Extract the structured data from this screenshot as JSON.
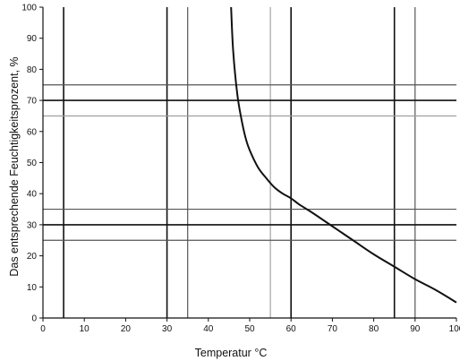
{
  "chart_data": {
    "type": "line",
    "title": "",
    "xlabel": "Temperatur °C",
    "ylabel": "Das entsprechende Feuchtigkeitsprozent, %",
    "xlim": [
      0,
      100
    ],
    "ylim": [
      0,
      100
    ],
    "x_ticks": [
      0,
      10,
      20,
      30,
      40,
      50,
      60,
      70,
      80,
      90,
      100
    ],
    "y_ticks": [
      0,
      10,
      20,
      30,
      40,
      50,
      60,
      70,
      80,
      90,
      100
    ],
    "x_tick_labels": [
      "0",
      "10",
      "20",
      "30",
      "40",
      "50",
      "60",
      "70",
      "80",
      "90",
      "100"
    ],
    "y_tick_labels": [
      "0",
      "10",
      "20",
      "30",
      "40",
      "50",
      "60",
      "70",
      "80",
      "90",
      "100"
    ],
    "grid": false,
    "series": [
      {
        "x": [
          45.5,
          46,
          47,
          48,
          49,
          50,
          52,
          54,
          56,
          58,
          60,
          62,
          65,
          70,
          75,
          80,
          85,
          90,
          95,
          100
        ],
        "y": [
          100,
          86,
          72,
          64,
          58,
          54,
          48.5,
          45,
          42,
          40,
          38.5,
          36.5,
          34,
          29.5,
          25,
          20.5,
          16.5,
          12.5,
          9,
          5
        ]
      }
    ],
    "reference_lines": {
      "vertical": [
        {
          "x": 5,
          "style": "dark"
        },
        {
          "x": 30,
          "style": "dark"
        },
        {
          "x": 35,
          "style": "medium"
        },
        {
          "x": 55,
          "style": "light"
        },
        {
          "x": 60,
          "style": "dark"
        },
        {
          "x": 85,
          "style": "dark"
        },
        {
          "x": 90,
          "style": "medium"
        }
      ],
      "horizontal": [
        {
          "y": 25,
          "style": "medium"
        },
        {
          "y": 30,
          "style": "dark"
        },
        {
          "y": 35,
          "style": "medium"
        },
        {
          "y": 65,
          "style": "light"
        },
        {
          "y": 70,
          "style": "dark"
        },
        {
          "y": 75,
          "style": "medium"
        }
      ]
    },
    "colors": {
      "curve": "#111111",
      "dark": "#111111",
      "medium": "#555555",
      "light": "#9a9a9a",
      "axis": "#111111"
    }
  }
}
